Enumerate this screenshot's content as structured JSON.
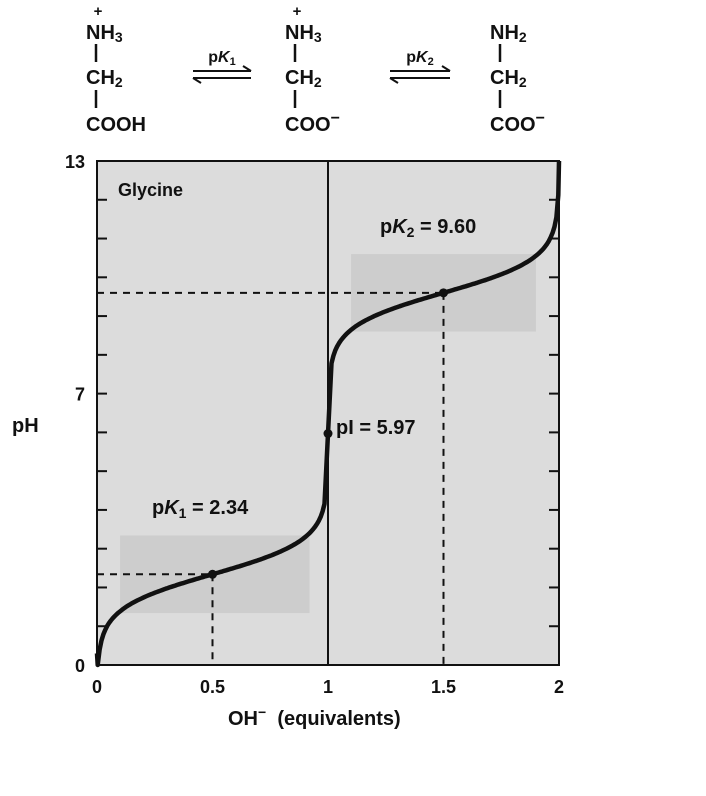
{
  "scheme": {
    "structures": [
      {
        "top": "NH",
        "top_sub": "3",
        "charge": "+",
        "mid": "CH",
        "mid_sub": "2",
        "bottom": "COOH",
        "bottom_charge": ""
      },
      {
        "top": "NH",
        "top_sub": "3",
        "charge": "+",
        "mid": "CH",
        "mid_sub": "2",
        "bottom": "COO",
        "bottom_charge": "−"
      },
      {
        "top": "NH",
        "top_sub": "2",
        "charge": "",
        "mid": "CH",
        "mid_sub": "2",
        "bottom": "COO",
        "bottom_charge": "−"
      }
    ],
    "equilibria": [
      {
        "p": "p",
        "K": "K",
        "sub": "1"
      },
      {
        "p": "p",
        "K": "K",
        "sub": "2"
      }
    ]
  },
  "chart_data": {
    "type": "line",
    "title": "Glycine",
    "xlabel": "OH",
    "xlabel_sup": "−",
    "xlabel_rest": "(equivalents)",
    "ylabel": "pH",
    "xlim": [
      0,
      2
    ],
    "ylim": [
      0,
      13
    ],
    "x_ticks": [
      {
        "value": 0,
        "label": "0"
      },
      {
        "value": 0.5,
        "label": "0.5"
      },
      {
        "value": 1,
        "label": "1"
      },
      {
        "value": 1.5,
        "label": "1.5"
      },
      {
        "value": 2,
        "label": "2"
      }
    ],
    "y_ticks_labeled": [
      {
        "value": 0,
        "label": "0"
      },
      {
        "value": 7,
        "label": "7"
      },
      {
        "value": 13,
        "label": "13"
      }
    ],
    "y_minor_tick_count": 13,
    "pK1": 2.34,
    "pI": 5.97,
    "pK2": 9.6,
    "points": [
      {
        "x": 0.5,
        "y": 2.34
      },
      {
        "x": 1.0,
        "y": 5.97
      },
      {
        "x": 1.5,
        "y": 9.6
      }
    ],
    "buffer_regions": [
      {
        "x": [
          0.1,
          0.92
        ],
        "y": [
          1.34,
          3.34
        ]
      },
      {
        "x": [
          1.1,
          1.9
        ],
        "y": [
          8.6,
          10.6
        ]
      }
    ],
    "vertical_line_x": 1,
    "annotations": [
      {
        "p": "p",
        "K": "K",
        "sub": "1",
        "eq": " = 2.34"
      },
      {
        "text": "pI = 5.97"
      },
      {
        "p": "p",
        "K": "K",
        "sub": "2",
        "eq": " = 9.60"
      }
    ],
    "colors": {
      "plot_bg": "#dcdcdc",
      "buffer_bg": "#cdcdcd",
      "curve": "#111111"
    },
    "grid": false
  }
}
